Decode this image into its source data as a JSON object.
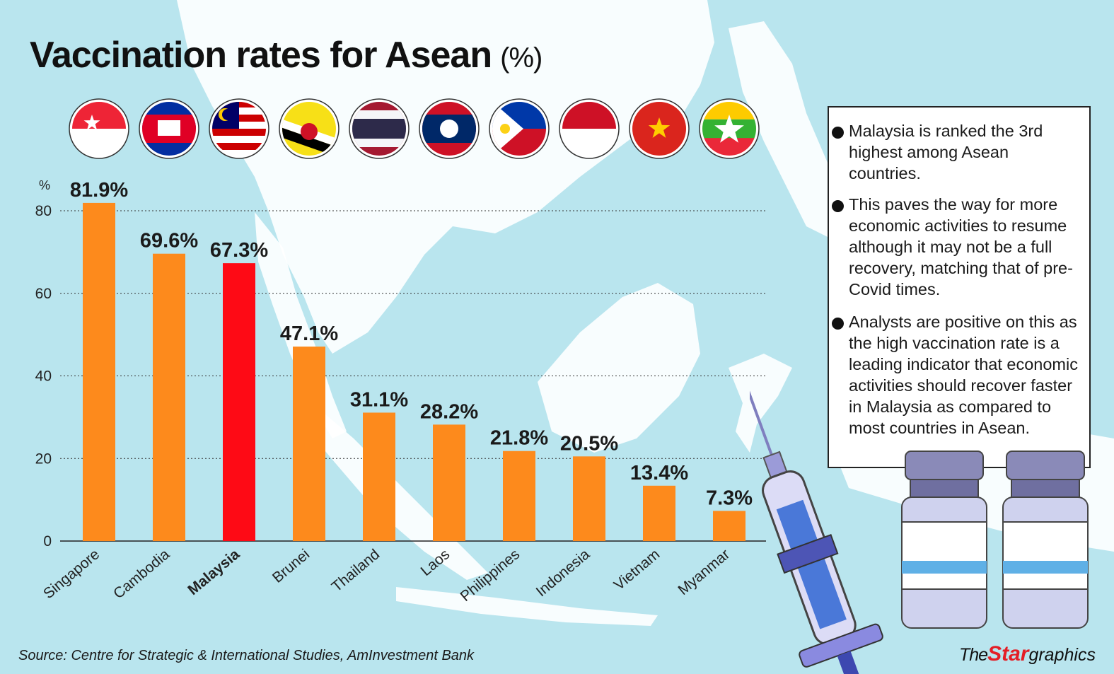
{
  "title": "Vaccination rates for Asean",
  "title_unit": "(%)",
  "chart_data": {
    "type": "bar",
    "title": "Vaccination rates for Asean (%)",
    "ylabel": "%",
    "ylim": [
      0,
      80
    ],
    "yticks": [
      0,
      20,
      40,
      60,
      80
    ],
    "grid": true,
    "categories": [
      "Singapore",
      "Cambodia",
      "Malaysia",
      "Brunei",
      "Thailand",
      "Laos",
      "Philippines",
      "Indonesia",
      "Vietnam",
      "Myanmar"
    ],
    "values": [
      81.9,
      69.6,
      67.3,
      47.1,
      31.1,
      28.2,
      21.8,
      20.5,
      13.4,
      7.3
    ],
    "value_labels": [
      "81.9%",
      "69.6%",
      "67.3%",
      "47.1%",
      "31.1%",
      "28.2%",
      "21.8%",
      "20.5%",
      "13.4%",
      "7.3%"
    ],
    "highlight": "Malaysia",
    "colors": {
      "bar": "#fd8a1c",
      "highlight": "#fe0a15",
      "grid": "#333333"
    },
    "flags": [
      "singapore-flag-icon",
      "cambodia-flag-icon",
      "malaysia-flag-icon",
      "brunei-flag-icon",
      "thailand-flag-icon",
      "laos-flag-icon",
      "philippines-flag-icon",
      "indonesia-flag-icon",
      "vietnam-flag-icon",
      "myanmar-flag-icon"
    ]
  },
  "notes": [
    "Malaysia is ranked the 3rd highest among Asean countries.",
    "This paves the way for more economic activities to resume although it may not be a full recovery, matching that of pre-Covid times.",
    "Analysts are positive on this as the high vaccination rate is a leading indicator that economic activities should recover faster in Malaysia as compared to most countries in Asean."
  ],
  "source": "Source: Centre for Strategic & International Studies, AmInvestment Bank",
  "brand": {
    "the": "The",
    "star": "Star",
    "graphics": "graphics"
  },
  "colors": {
    "background": "#b9e5ee",
    "land": "#ffffff",
    "accent": "#fd8a1c",
    "highlight": "#fe0a15"
  }
}
